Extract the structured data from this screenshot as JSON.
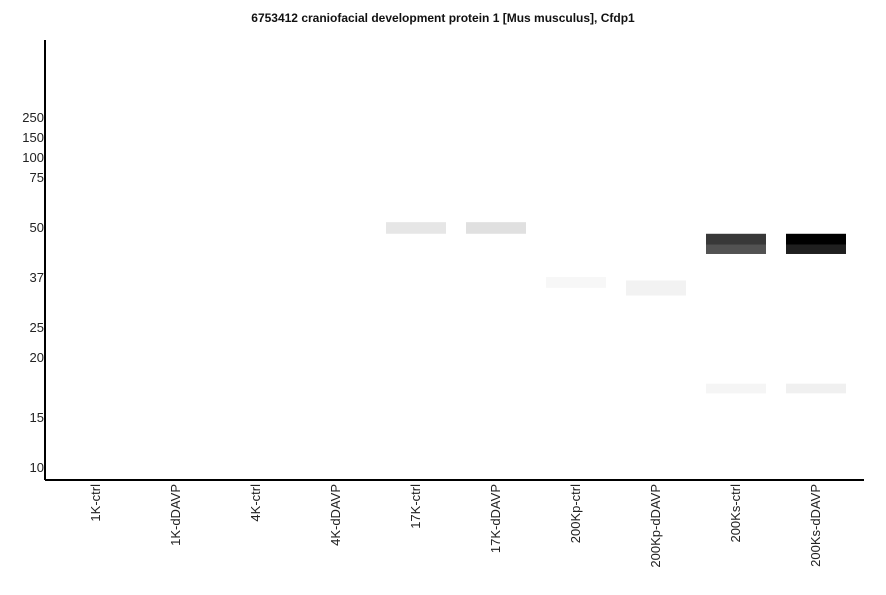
{
  "chart_data": {
    "type": "heatmap",
    "title": "6753412 craniofacial development protein 1 [Mus musculus], Cfdp1",
    "y_ticks": [
      "250",
      "150",
      "100",
      "75",
      "50",
      "37",
      "25",
      "20",
      "15",
      "10"
    ],
    "y_tick_values": [
      250,
      150,
      100,
      75,
      50,
      37,
      25,
      20,
      15,
      10
    ],
    "lanes": [
      "1K-ctrl",
      "1K-dDAVP",
      "4K-ctrl",
      "4K-dDAVP",
      "17K-ctrl",
      "17K-dDAVP",
      "200Kp-ctrl",
      "200Kp-dDAVP",
      "200Ks-ctrl",
      "200Ks-dDAVP"
    ],
    "bands": [
      {
        "lane": 4,
        "mw_high": 52,
        "mw_low": 48,
        "intensity": 0.1
      },
      {
        "lane": 5,
        "mw_high": 52,
        "mw_low": 48,
        "intensity": 0.12
      },
      {
        "lane": 6,
        "mw_high": 37,
        "mw_low": 34,
        "intensity": 0.03
      },
      {
        "lane": 7,
        "mw_high": 36,
        "mw_low": 32,
        "intensity": 0.05
      },
      {
        "lane": 8,
        "mw_high": 48,
        "mw_low": 45,
        "intensity": 0.78
      },
      {
        "lane": 8,
        "mw_high": 45,
        "mw_low": 42.5,
        "intensity": 0.68
      },
      {
        "lane": 8,
        "mw_high": 17.6,
        "mw_low": 16.8,
        "intensity": 0.04
      },
      {
        "lane": 9,
        "mw_high": 48,
        "mw_low": 45,
        "intensity": 1.0
      },
      {
        "lane": 9,
        "mw_high": 45,
        "mw_low": 42.5,
        "intensity": 0.88
      },
      {
        "lane": 9,
        "mw_high": 17.6,
        "mw_low": 16.8,
        "intensity": 0.06
      }
    ]
  }
}
